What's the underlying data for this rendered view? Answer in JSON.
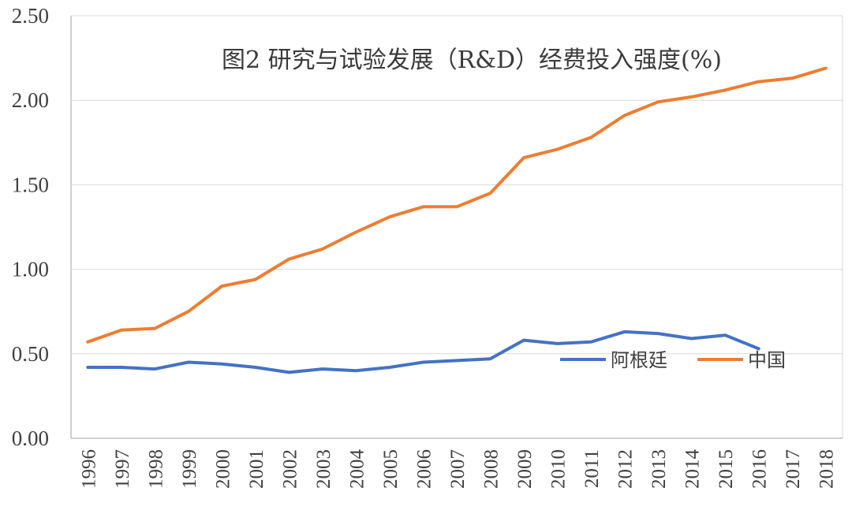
{
  "chart_data": {
    "type": "line",
    "title": "图2 研究与试验发展（R&D）经费投入强度(%)",
    "xlabel": "",
    "ylabel": "",
    "ylim": [
      0,
      2.5
    ],
    "y_ticks": [
      "0.00",
      "0.50",
      "1.00",
      "1.50",
      "2.00",
      "2.50"
    ],
    "y_tick_values": [
      0,
      0.5,
      1.0,
      1.5,
      2.0,
      2.5
    ],
    "grid": true,
    "legend_position": "right-middle",
    "categories": [
      "1996",
      "1997",
      "1998",
      "1999",
      "2000",
      "2001",
      "2002",
      "2003",
      "2004",
      "2005",
      "2006",
      "2007",
      "2008",
      "2009",
      "2010",
      "2011",
      "2012",
      "2013",
      "2014",
      "2015",
      "2016",
      "2017",
      "2018"
    ],
    "series": [
      {
        "name": "阿根廷",
        "color": "#4472C4",
        "values": [
          0.42,
          0.42,
          0.41,
          0.45,
          0.44,
          0.42,
          0.39,
          0.41,
          0.4,
          0.42,
          0.45,
          0.46,
          0.47,
          0.58,
          0.56,
          0.57,
          0.63,
          0.62,
          0.59,
          0.61,
          0.53,
          null,
          null
        ]
      },
      {
        "name": "中国",
        "color": "#ED7D31",
        "values": [
          0.57,
          0.64,
          0.65,
          0.75,
          0.9,
          0.94,
          1.06,
          1.12,
          1.22,
          1.31,
          1.37,
          1.37,
          1.45,
          1.66,
          1.71,
          1.78,
          1.91,
          1.99,
          2.02,
          2.06,
          2.11,
          2.13,
          2.19
        ]
      }
    ]
  }
}
